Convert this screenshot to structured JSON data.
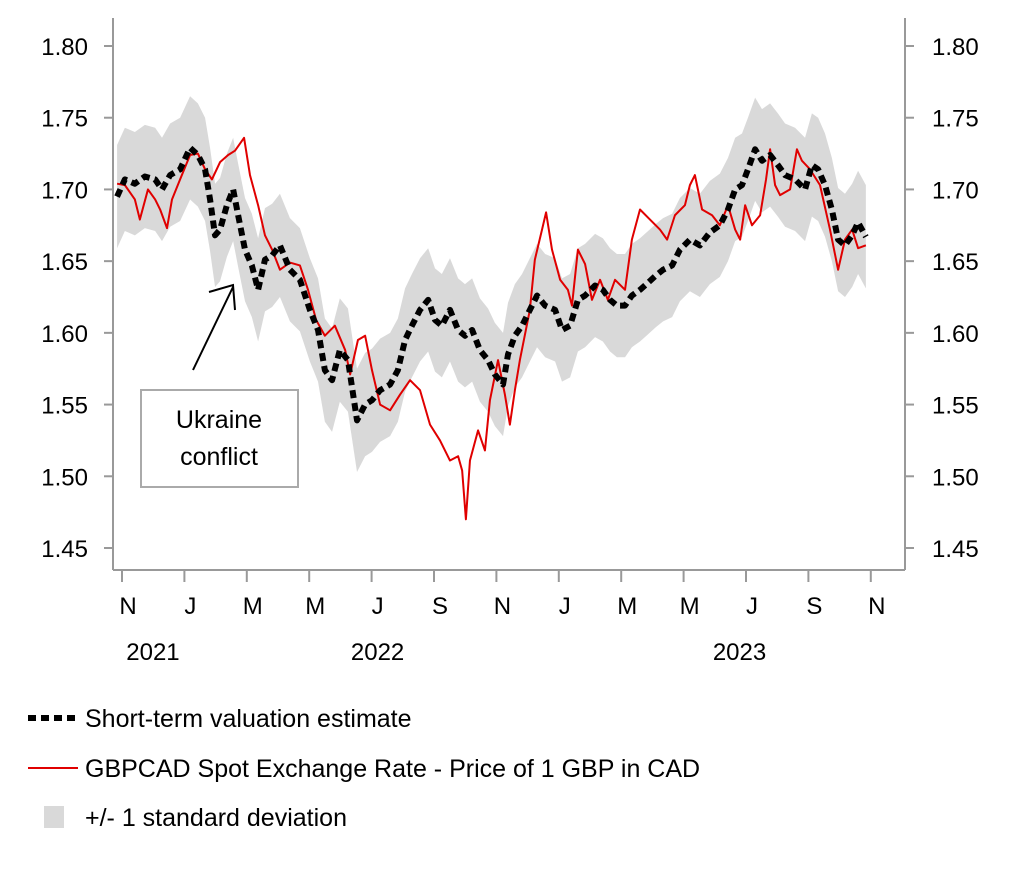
{
  "chart_data": {
    "type": "line",
    "x_unit": "months since 2021-11-01",
    "xlim": [
      -0.4,
      24.8
    ],
    "ylim": [
      1.45,
      1.8
    ],
    "y_ticks": [
      "1.80",
      "1.75",
      "1.70",
      "1.65",
      "1.60",
      "1.55",
      "1.50",
      "1.45"
    ],
    "x_ticks": [
      {
        "m": 0,
        "label": "N"
      },
      {
        "m": 2,
        "label": "J"
      },
      {
        "m": 4,
        "label": "M"
      },
      {
        "m": 6,
        "label": "M"
      },
      {
        "m": 8,
        "label": "J"
      },
      {
        "m": 10,
        "label": "S"
      },
      {
        "m": 12,
        "label": "N"
      },
      {
        "m": 14,
        "label": "J"
      },
      {
        "m": 16,
        "label": "M"
      },
      {
        "m": 18,
        "label": "M"
      },
      {
        "m": 20,
        "label": "J"
      },
      {
        "m": 22,
        "label": "S"
      },
      {
        "m": 24,
        "label": "N"
      }
    ],
    "year_labels": [
      {
        "m": 0.8,
        "label": "2021"
      },
      {
        "m": 8,
        "label": "2022"
      },
      {
        "m": 19.6,
        "label": "2023"
      }
    ],
    "annotation": {
      "line1": "Ukraine",
      "line2": "conflict",
      "points_to_m": 3.5
    },
    "band_half_width": 0.036,
    "series": [
      {
        "name": "Short-term valuation estimate",
        "color": "#000000",
        "style": "dashed",
        "points": [
          [
            -0.35,
            1.695
          ],
          [
            -0.1,
            1.707
          ],
          [
            0.22,
            1.704
          ],
          [
            0.54,
            1.709
          ],
          [
            0.87,
            1.707
          ],
          [
            1.09,
            1.7
          ],
          [
            1.35,
            1.71
          ],
          [
            1.67,
            1.714
          ],
          [
            1.99,
            1.729
          ],
          [
            2.24,
            1.724
          ],
          [
            2.47,
            1.714
          ],
          [
            2.63,
            1.693
          ],
          [
            2.79,
            1.668
          ],
          [
            2.95,
            1.672
          ],
          [
            3.17,
            1.689
          ],
          [
            3.37,
            1.7
          ],
          [
            3.53,
            1.682
          ],
          [
            3.75,
            1.658
          ],
          [
            3.97,
            1.647
          ],
          [
            4.17,
            1.63
          ],
          [
            4.39,
            1.651
          ],
          [
            4.62,
            1.654
          ],
          [
            4.87,
            1.661
          ],
          [
            5.19,
            1.644
          ],
          [
            5.51,
            1.637
          ],
          [
            5.83,
            1.616
          ],
          [
            6.09,
            1.602
          ],
          [
            6.31,
            1.574
          ],
          [
            6.54,
            1.567
          ],
          [
            6.79,
            1.588
          ],
          [
            7.05,
            1.581
          ],
          [
            7.34,
            1.539
          ],
          [
            7.6,
            1.55
          ],
          [
            7.82,
            1.553
          ],
          [
            8.08,
            1.56
          ],
          [
            8.4,
            1.564
          ],
          [
            8.65,
            1.574
          ],
          [
            8.88,
            1.595
          ],
          [
            9.1,
            1.605
          ],
          [
            9.36,
            1.616
          ],
          [
            9.62,
            1.623
          ],
          [
            9.84,
            1.609
          ],
          [
            10.06,
            1.605
          ],
          [
            10.32,
            1.616
          ],
          [
            10.58,
            1.602
          ],
          [
            10.8,
            1.598
          ],
          [
            11.03,
            1.602
          ],
          [
            11.28,
            1.588
          ],
          [
            11.54,
            1.581
          ],
          [
            11.76,
            1.571
          ],
          [
            12.02,
            1.564
          ],
          [
            12.18,
            1.585
          ],
          [
            12.4,
            1.598
          ],
          [
            12.63,
            1.605
          ],
          [
            12.88,
            1.616
          ],
          [
            13.11,
            1.626
          ],
          [
            13.37,
            1.619
          ],
          [
            13.69,
            1.616
          ],
          [
            13.91,
            1.602
          ],
          [
            14.17,
            1.605
          ],
          [
            14.42,
            1.623
          ],
          [
            14.65,
            1.626
          ],
          [
            14.97,
            1.633
          ],
          [
            15.22,
            1.63
          ],
          [
            15.45,
            1.623
          ],
          [
            15.67,
            1.619
          ],
          [
            15.93,
            1.619
          ],
          [
            16.15,
            1.626
          ],
          [
            16.41,
            1.63
          ],
          [
            16.67,
            1.635
          ],
          [
            16.92,
            1.64
          ],
          [
            17.15,
            1.644
          ],
          [
            17.44,
            1.647
          ],
          [
            17.69,
            1.658
          ],
          [
            18.01,
            1.665
          ],
          [
            18.33,
            1.661
          ],
          [
            18.65,
            1.67
          ],
          [
            18.97,
            1.675
          ],
          [
            19.23,
            1.686
          ],
          [
            19.46,
            1.7
          ],
          [
            19.68,
            1.703
          ],
          [
            19.87,
            1.714
          ],
          [
            20.1,
            1.728
          ],
          [
            20.32,
            1.72
          ],
          [
            20.58,
            1.724
          ],
          [
            20.83,
            1.717
          ],
          [
            21.06,
            1.71
          ],
          [
            21.38,
            1.707
          ],
          [
            21.7,
            1.7
          ],
          [
            21.92,
            1.717
          ],
          [
            22.12,
            1.714
          ],
          [
            22.34,
            1.703
          ],
          [
            22.56,
            1.686
          ],
          [
            22.76,
            1.665
          ],
          [
            22.98,
            1.661
          ],
          [
            23.21,
            1.668
          ],
          [
            23.4,
            1.677
          ],
          [
            23.65,
            1.667
          ]
        ]
      },
      {
        "name": "GBPCAD Spot Exchange Rate - Price of 1 GBP in CAD",
        "color": "#e00000",
        "style": "solid",
        "points": [
          [
            -0.35,
            1.704
          ],
          [
            -0.1,
            1.703
          ],
          [
            0.22,
            1.693
          ],
          [
            0.38,
            1.679
          ],
          [
            0.64,
            1.7
          ],
          [
            0.87,
            1.693
          ],
          [
            1.03,
            1.686
          ],
          [
            1.25,
            1.673
          ],
          [
            1.41,
            1.693
          ],
          [
            1.67,
            1.707
          ],
          [
            1.99,
            1.724
          ],
          [
            2.24,
            1.725
          ],
          [
            2.47,
            1.714
          ],
          [
            2.69,
            1.707
          ],
          [
            2.95,
            1.719
          ],
          [
            3.21,
            1.724
          ],
          [
            3.43,
            1.727
          ],
          [
            3.72,
            1.736
          ],
          [
            3.91,
            1.71
          ],
          [
            4.17,
            1.689
          ],
          [
            4.39,
            1.668
          ],
          [
            4.62,
            1.658
          ],
          [
            4.87,
            1.644
          ],
          [
            5.19,
            1.649
          ],
          [
            5.51,
            1.647
          ],
          [
            5.77,
            1.63
          ],
          [
            6.03,
            1.609
          ],
          [
            6.31,
            1.598
          ],
          [
            6.63,
            1.605
          ],
          [
            6.96,
            1.588
          ],
          [
            7.12,
            1.571
          ],
          [
            7.37,
            1.595
          ],
          [
            7.6,
            1.598
          ],
          [
            7.82,
            1.574
          ],
          [
            8.08,
            1.55
          ],
          [
            8.4,
            1.546
          ],
          [
            8.72,
            1.557
          ],
          [
            9.04,
            1.567
          ],
          [
            9.36,
            1.56
          ],
          [
            9.68,
            1.536
          ],
          [
            10.0,
            1.525
          ],
          [
            10.32,
            1.511
          ],
          [
            10.58,
            1.514
          ],
          [
            10.71,
            1.504
          ],
          [
            10.83,
            1.47
          ],
          [
            10.96,
            1.511
          ],
          [
            11.22,
            1.532
          ],
          [
            11.44,
            1.518
          ],
          [
            11.6,
            1.553
          ],
          [
            11.86,
            1.581
          ],
          [
            12.08,
            1.557
          ],
          [
            12.24,
            1.536
          ],
          [
            12.4,
            1.56
          ],
          [
            12.56,
            1.581
          ],
          [
            12.88,
            1.616
          ],
          [
            13.04,
            1.651
          ],
          [
            13.27,
            1.672
          ],
          [
            13.4,
            1.684
          ],
          [
            13.59,
            1.658
          ],
          [
            13.85,
            1.637
          ],
          [
            14.1,
            1.63
          ],
          [
            14.23,
            1.619
          ],
          [
            14.42,
            1.658
          ],
          [
            14.65,
            1.648
          ],
          [
            14.87,
            1.623
          ],
          [
            15.13,
            1.637
          ],
          [
            15.38,
            1.623
          ],
          [
            15.61,
            1.637
          ],
          [
            15.93,
            1.63
          ],
          [
            16.15,
            1.665
          ],
          [
            16.41,
            1.686
          ],
          [
            16.73,
            1.679
          ],
          [
            17.05,
            1.672
          ],
          [
            17.28,
            1.665
          ],
          [
            17.53,
            1.682
          ],
          [
            17.85,
            1.689
          ],
          [
            18.01,
            1.703
          ],
          [
            18.17,
            1.71
          ],
          [
            18.4,
            1.686
          ],
          [
            18.72,
            1.682
          ],
          [
            18.97,
            1.675
          ],
          [
            19.23,
            1.689
          ],
          [
            19.46,
            1.672
          ],
          [
            19.62,
            1.665
          ],
          [
            19.78,
            1.689
          ],
          [
            20.0,
            1.675
          ],
          [
            20.26,
            1.682
          ],
          [
            20.45,
            1.707
          ],
          [
            20.58,
            1.728
          ],
          [
            20.74,
            1.703
          ],
          [
            20.9,
            1.696
          ],
          [
            21.22,
            1.7
          ],
          [
            21.44,
            1.728
          ],
          [
            21.6,
            1.72
          ],
          [
            21.86,
            1.714
          ],
          [
            22.18,
            1.703
          ],
          [
            22.5,
            1.672
          ],
          [
            22.76,
            1.644
          ],
          [
            22.98,
            1.665
          ],
          [
            23.21,
            1.672
          ],
          [
            23.4,
            1.659
          ],
          [
            23.65,
            1.661
          ]
        ]
      }
    ],
    "legend": [
      {
        "label": "Short-term valuation estimate",
        "swatch": "dashed-black"
      },
      {
        "label": "GBPCAD Spot Exchange Rate - Price of 1 GBP in CAD",
        "swatch": "red-line"
      },
      {
        "label": "+/- 1 standard deviation",
        "swatch": "gray-box"
      }
    ],
    "band_color": "#d9d9d9",
    "axis_color": "#999999"
  }
}
